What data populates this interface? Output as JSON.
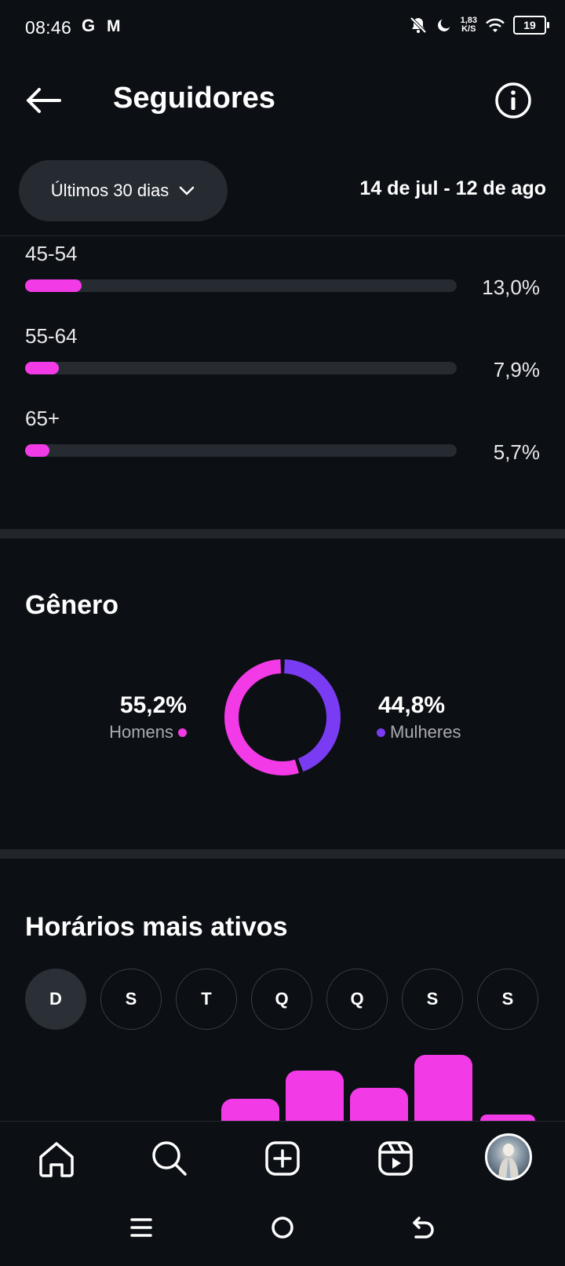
{
  "status_bar": {
    "time": "08:46",
    "icon_g": "G",
    "icon_m": "M",
    "speed_top": "1,83",
    "speed_bottom": "K/S",
    "battery": "19"
  },
  "header": {
    "title": "Seguidores"
  },
  "filter": {
    "period": "Últimos 30 dias",
    "range": "14 de jul - 12 de ago"
  },
  "age_groups": [
    {
      "label": "45-54",
      "percent": "13,0%",
      "fraction": 0.13
    },
    {
      "label": "55-64",
      "percent": "7,9%",
      "fraction": 0.079
    },
    {
      "label": "65+",
      "percent": "5,7%",
      "fraction": 0.057
    }
  ],
  "gender": {
    "title": "Gênero",
    "men": {
      "percent": "55,2%",
      "label": "Homens",
      "value": 55.2,
      "color": "#f23be6"
    },
    "women": {
      "percent": "44,8%",
      "label": "Mulheres",
      "value": 44.8,
      "color": "#7a3cf2"
    }
  },
  "active_times": {
    "title": "Horários mais ativos",
    "days": [
      "D",
      "S",
      "T",
      "Q",
      "Q",
      "S",
      "S"
    ],
    "selected_day": 0,
    "bar_color": "#f23be6"
  },
  "colors": {
    "accent": "#f23be6",
    "secondary": "#7a3cf2",
    "background": "#0c0f14"
  },
  "nav": [
    "home-icon",
    "search-icon",
    "create-icon",
    "reels-icon",
    "profile-avatar"
  ]
}
